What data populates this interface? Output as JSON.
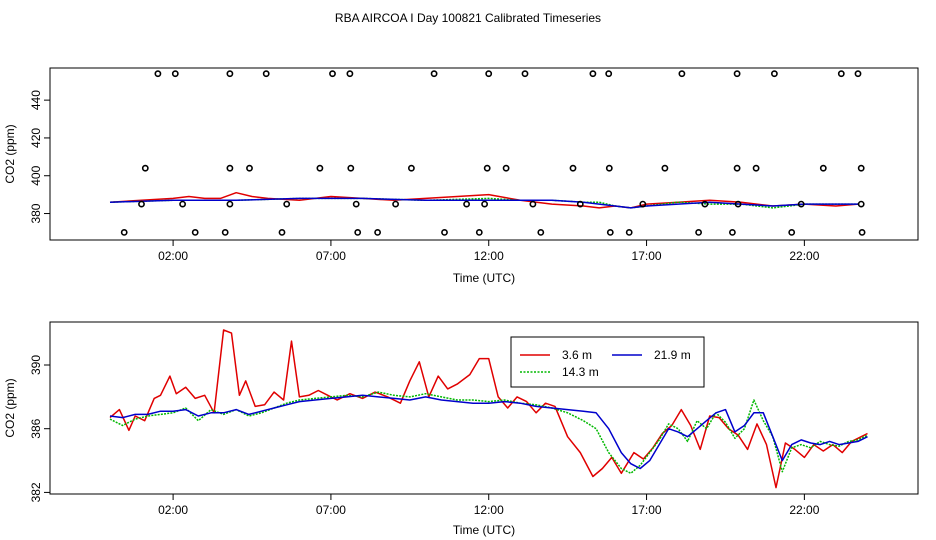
{
  "figure": {
    "title": "RBA AIRCOA I  Day 100821  Calibrated Timeseries"
  },
  "colors": {
    "series_3_6": "#e00000",
    "series_14_3": "#00b800",
    "series_21_9": "#0000cc",
    "points": "#000000"
  },
  "chart_data": [
    {
      "type": "line",
      "panel": "top",
      "xlabel": "Time (UTC)",
      "ylabel": "CO2 (ppm)",
      "xlim": [
        -1.9,
        25.6
      ],
      "ylim": [
        366,
        457
      ],
      "x_ticks": [
        2,
        7,
        12,
        17,
        22
      ],
      "x_tick_labels": [
        "02:00",
        "07:00",
        "12:00",
        "17:00",
        "22:00"
      ],
      "y_ticks": [
        380,
        400,
        420,
        440
      ],
      "y_tick_labels": [
        "380",
        "400",
        "420",
        "440"
      ],
      "grid": false,
      "series": [
        {
          "color": "#e00000",
          "x": [
            0,
            1,
            2,
            2.5,
            3,
            3.5,
            4,
            4.5,
            5,
            6,
            7,
            8,
            9,
            10,
            11,
            12,
            13,
            14,
            15,
            15.5,
            16,
            16.5,
            17,
            18,
            19,
            20,
            21,
            22,
            23,
            23.7
          ],
          "y": [
            386,
            387,
            388,
            389,
            388,
            388,
            391,
            389,
            388,
            387,
            389,
            388,
            387,
            388,
            389,
            390,
            387,
            385,
            384,
            383,
            384,
            383,
            385,
            386,
            387,
            386,
            384,
            385,
            384,
            385
          ]
        },
        {
          "color": "#00b800",
          "x": [
            0,
            2,
            4,
            6,
            8,
            10,
            12,
            13,
            14,
            15,
            15.5,
            16,
            16.5,
            17,
            18,
            19,
            20,
            21,
            22,
            23,
            23.7
          ],
          "y": [
            386,
            387,
            387,
            388,
            388,
            387,
            388,
            387,
            387,
            386,
            386,
            384,
            383,
            384,
            386,
            385,
            385,
            383,
            385,
            385,
            385
          ]
        },
        {
          "color": "#0000cc",
          "x": [
            0,
            2,
            4,
            6,
            8,
            10,
            12,
            13,
            14,
            15,
            15.5,
            16,
            16.5,
            17,
            18,
            19,
            20,
            21,
            22,
            23,
            23.7
          ],
          "y": [
            386,
            387,
            387,
            388,
            388,
            387,
            387,
            387,
            387,
            386,
            385,
            384,
            383,
            384,
            385,
            386,
            385,
            384,
            385,
            385,
            385
          ]
        }
      ],
      "points": {
        "x": [
          1.52,
          2.07,
          3.8,
          4.95,
          7.05,
          7.6,
          10.27,
          12.0,
          13.15,
          15.3,
          15.8,
          18.12,
          19.87,
          21.05,
          23.17,
          23.7,
          1.12,
          3.8,
          4.42,
          6.65,
          7.63,
          9.55,
          11.95,
          12.55,
          14.67,
          15.82,
          17.58,
          19.87,
          20.47,
          22.6,
          23.8,
          1.0,
          2.3,
          3.8,
          5.6,
          7.8,
          9.05,
          11.3,
          11.87,
          13.4,
          14.9,
          16.88,
          18.85,
          19.9,
          21.9,
          23.8,
          0.45,
          2.7,
          3.65,
          5.45,
          7.85,
          8.48,
          10.6,
          11.7,
          13.65,
          15.85,
          16.45,
          18.65,
          19.72,
          21.6,
          23.83
        ],
        "y": [
          454,
          454,
          454,
          454,
          454,
          454,
          454,
          454,
          454,
          454,
          454,
          454,
          454,
          454,
          454,
          454,
          404,
          404,
          404,
          404,
          404,
          404,
          404,
          404,
          404,
          404,
          404,
          404,
          404,
          404,
          404,
          385,
          385,
          385,
          385,
          385,
          385,
          385,
          385,
          385,
          385,
          385,
          385,
          385,
          385,
          385,
          370,
          370,
          370,
          370,
          370,
          370,
          370,
          370,
          370,
          370,
          370,
          370,
          370,
          370,
          370
        ]
      }
    },
    {
      "type": "line",
      "panel": "bottom",
      "xlabel": "Time (UTC)",
      "ylabel": "CO2 (ppm)",
      "xlim": [
        -1.9,
        25.6
      ],
      "ylim": [
        381.9,
        392.7
      ],
      "x_ticks": [
        2,
        7,
        12,
        17,
        22
      ],
      "x_tick_labels": [
        "02:00",
        "07:00",
        "12:00",
        "17:00",
        "22:00"
      ],
      "y_ticks": [
        382,
        386,
        390
      ],
      "y_tick_labels": [
        "382",
        "386",
        "390"
      ],
      "grid": false,
      "legend": {
        "position": "top-right",
        "entries": [
          {
            "label": "3.6 m",
            "color": "#e00000"
          },
          {
            "label": "21.9 m",
            "color": "#0000cc"
          },
          {
            "label": "14.3 m",
            "color": "#00b800"
          }
        ]
      },
      "series": [
        {
          "name": "3.6 m",
          "color": "#e00000",
          "x": [
            0,
            0.3,
            0.6,
            0.8,
            1.1,
            1.4,
            1.6,
            1.9,
            2.1,
            2.4,
            2.7,
            3.0,
            3.3,
            3.6,
            3.85,
            4.1,
            4.3,
            4.6,
            4.9,
            5.2,
            5.5,
            5.75,
            6.0,
            6.3,
            6.6,
            6.9,
            7.2,
            7.6,
            8.0,
            8.4,
            8.8,
            9.2,
            9.5,
            9.8,
            10.1,
            10.4,
            10.7,
            11.0,
            11.4,
            11.7,
            12.0,
            12.3,
            12.6,
            12.9,
            13.2,
            13.5,
            13.8,
            14.1,
            14.5,
            14.9,
            15.3,
            15.6,
            15.9,
            16.2,
            16.6,
            16.9,
            17.2,
            17.5,
            17.8,
            18.1,
            18.4,
            18.7,
            19.0,
            19.3,
            19.6,
            19.9,
            20.2,
            20.5,
            20.8,
            21.1,
            21.4,
            21.7,
            22.0,
            22.3,
            22.6,
            22.9,
            23.2,
            23.5,
            23.8,
            24.0
          ],
          "y": [
            386.7,
            387.2,
            385.9,
            386.8,
            386.5,
            387.9,
            388.1,
            389.3,
            388.2,
            388.6,
            387.9,
            388.1,
            387.0,
            392.2,
            392.0,
            388.1,
            389.0,
            387.4,
            387.5,
            388.3,
            387.8,
            391.5,
            388.0,
            388.1,
            388.4,
            388.1,
            387.8,
            388.2,
            387.9,
            388.3,
            388.0,
            387.6,
            389.0,
            390.2,
            388.0,
            389.3,
            388.5,
            388.8,
            389.4,
            390.4,
            390.4,
            388.0,
            387.3,
            388.0,
            387.7,
            387.0,
            387.6,
            387.4,
            385.5,
            384.5,
            383.0,
            383.5,
            384.2,
            383.2,
            384.5,
            384.1,
            384.8,
            385.7,
            386.2,
            387.2,
            386.2,
            384.7,
            386.8,
            386.7,
            386.0,
            385.6,
            384.7,
            386.3,
            385.0,
            382.3,
            385.1,
            384.7,
            384.2,
            385.0,
            384.6,
            385.0,
            384.5,
            385.2,
            385.5,
            385.7
          ]
        },
        {
          "name": "14.3 m",
          "color": "#00b800",
          "x": [
            0,
            0.4,
            0.8,
            1.2,
            1.6,
            2.0,
            2.4,
            2.8,
            3.2,
            3.6,
            4.0,
            4.4,
            4.8,
            5.2,
            5.6,
            6.0,
            6.5,
            7.0,
            7.5,
            8.0,
            8.5,
            9.0,
            9.5,
            10.0,
            10.5,
            11.0,
            11.5,
            12.0,
            12.5,
            13.0,
            13.5,
            14.0,
            14.5,
            15.0,
            15.4,
            15.8,
            16.2,
            16.5,
            16.8,
            17.1,
            17.4,
            17.7,
            18.0,
            18.3,
            18.6,
            18.9,
            19.2,
            19.5,
            19.8,
            20.1,
            20.4,
            20.7,
            21.0,
            21.3,
            21.6,
            21.9,
            22.2,
            22.5,
            22.8,
            23.1,
            23.4,
            23.7,
            24.0
          ],
          "y": [
            386.6,
            386.2,
            386.6,
            386.8,
            386.9,
            387.0,
            387.3,
            386.5,
            387.2,
            386.9,
            387.2,
            386.8,
            387.0,
            387.3,
            387.6,
            387.8,
            387.9,
            388.0,
            388.1,
            388.0,
            388.3,
            388.1,
            388.0,
            388.2,
            388.0,
            387.8,
            387.8,
            387.7,
            387.8,
            387.6,
            387.5,
            387.3,
            387.0,
            386.5,
            386.0,
            384.5,
            383.5,
            383.2,
            383.7,
            384.5,
            385.3,
            386.3,
            386.0,
            385.2,
            386.5,
            386.0,
            387.0,
            386.4,
            385.4,
            386.0,
            387.8,
            386.5,
            385.5,
            383.3,
            384.8,
            385.0,
            384.8,
            385.2,
            385.0,
            384.9,
            385.2,
            385.3,
            385.6
          ]
        },
        {
          "name": "21.9 m",
          "color": "#0000cc",
          "x": [
            0,
            0.4,
            0.8,
            1.2,
            1.6,
            2.0,
            2.4,
            2.8,
            3.2,
            3.6,
            4.0,
            4.4,
            4.8,
            5.2,
            5.6,
            6.0,
            6.5,
            7.0,
            7.5,
            8.0,
            8.5,
            9.0,
            9.5,
            10.0,
            10.5,
            11.0,
            11.5,
            12.0,
            12.5,
            13.0,
            13.5,
            14.0,
            14.5,
            15.0,
            15.4,
            15.8,
            16.2,
            16.5,
            16.8,
            17.1,
            17.4,
            17.7,
            18.0,
            18.3,
            18.6,
            18.9,
            19.2,
            19.5,
            19.8,
            20.1,
            20.4,
            20.7,
            21.0,
            21.3,
            21.6,
            21.9,
            22.2,
            22.5,
            22.8,
            23.1,
            23.4,
            23.7,
            24.0
          ],
          "y": [
            386.8,
            386.7,
            386.9,
            386.9,
            387.1,
            387.1,
            387.2,
            386.8,
            387.0,
            387.0,
            387.2,
            386.9,
            387.1,
            387.3,
            387.5,
            387.7,
            387.8,
            387.9,
            388.0,
            388.1,
            388.0,
            387.9,
            387.8,
            388.0,
            387.8,
            387.7,
            387.6,
            387.6,
            387.7,
            387.6,
            387.4,
            387.3,
            387.2,
            387.1,
            387.0,
            386.0,
            384.5,
            383.8,
            383.5,
            384.0,
            385.0,
            386.0,
            385.8,
            385.5,
            386.0,
            386.5,
            387.0,
            387.2,
            385.8,
            386.2,
            387.0,
            387.0,
            385.5,
            384.0,
            385.0,
            385.3,
            385.1,
            385.0,
            385.2,
            385.0,
            385.1,
            385.2,
            385.5
          ]
        }
      ]
    }
  ]
}
